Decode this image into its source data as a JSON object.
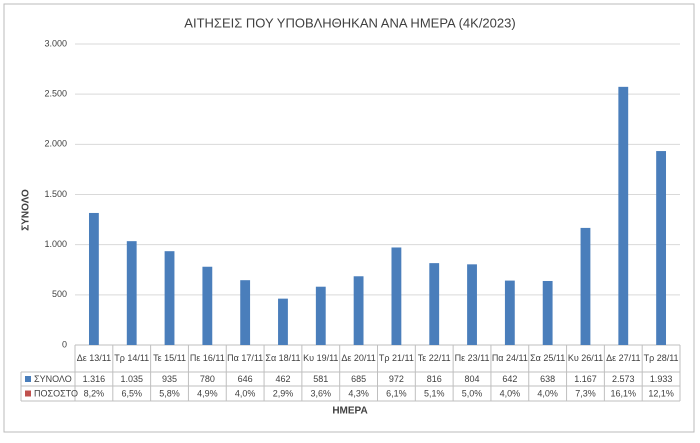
{
  "chart_data": {
    "type": "bar",
    "title": "ΑΙΤΗΣΕΙΣ ΠΟΥ ΥΠΟΒΛΗΘΗΚΑΝ ΑΝΑ ΗΜΕΡΑ (4Κ/2023)",
    "x_label": "ΗΜΕΡΑ",
    "y_label": "ΣΥΝΟΛΟ",
    "categories": [
      "Δε 13/11",
      "Τρ 14/11",
      "Τε 15/11",
      "Πε 16/11",
      "Πα 17/11",
      "Σα 18/11",
      "Κυ 19/11",
      "Δε 20/11",
      "Τρ 21/11",
      "Τε 22/11",
      "Πε 23/11",
      "Πα 24/11",
      "Σα 25/11",
      "Κυ 26/11",
      "Δε 27/11",
      "Τρ 28/11"
    ],
    "series": [
      {
        "name": "ΣΥΝΟΛΟ",
        "color": "#4a7ebb",
        "values": [
          1316,
          1035,
          935,
          780,
          646,
          462,
          581,
          685,
          972,
          816,
          804,
          642,
          638,
          1167,
          2573,
          1933
        ],
        "value_labels": [
          "1.316",
          "1.035",
          "935",
          "780",
          "646",
          "462",
          "581",
          "685",
          "972",
          "816",
          "804",
          "642",
          "638",
          "1.167",
          "2.573",
          "1.933"
        ]
      },
      {
        "name": "ΠΟΣΟΣΤΟ",
        "color": "#c0504d",
        "values": [
          8.2,
          6.5,
          5.8,
          4.9,
          4.0,
          2.9,
          3.6,
          4.3,
          6.1,
          5.1,
          5.0,
          4.0,
          4.0,
          7.3,
          16.1,
          12.1
        ],
        "value_labels": [
          "8,2%",
          "6,5%",
          "5,8%",
          "4,9%",
          "4,0%",
          "2,9%",
          "3,6%",
          "4,3%",
          "6,1%",
          "5,1%",
          "5,0%",
          "4,0%",
          "4,0%",
          "7,3%",
          "16,1%",
          "12,1%"
        ]
      }
    ],
    "ylim": [
      0,
      3000
    ],
    "yticks": [
      0,
      500,
      {
        "value": 1000,
        "label": "1.000"
      },
      {
        "value": 1500,
        "label": "1.500"
      },
      {
        "value": 2000,
        "label": "2.000"
      },
      {
        "value": 2500,
        "label": "2.500"
      },
      {
        "value": 3000,
        "label": "3.000"
      }
    ],
    "grid": true
  }
}
